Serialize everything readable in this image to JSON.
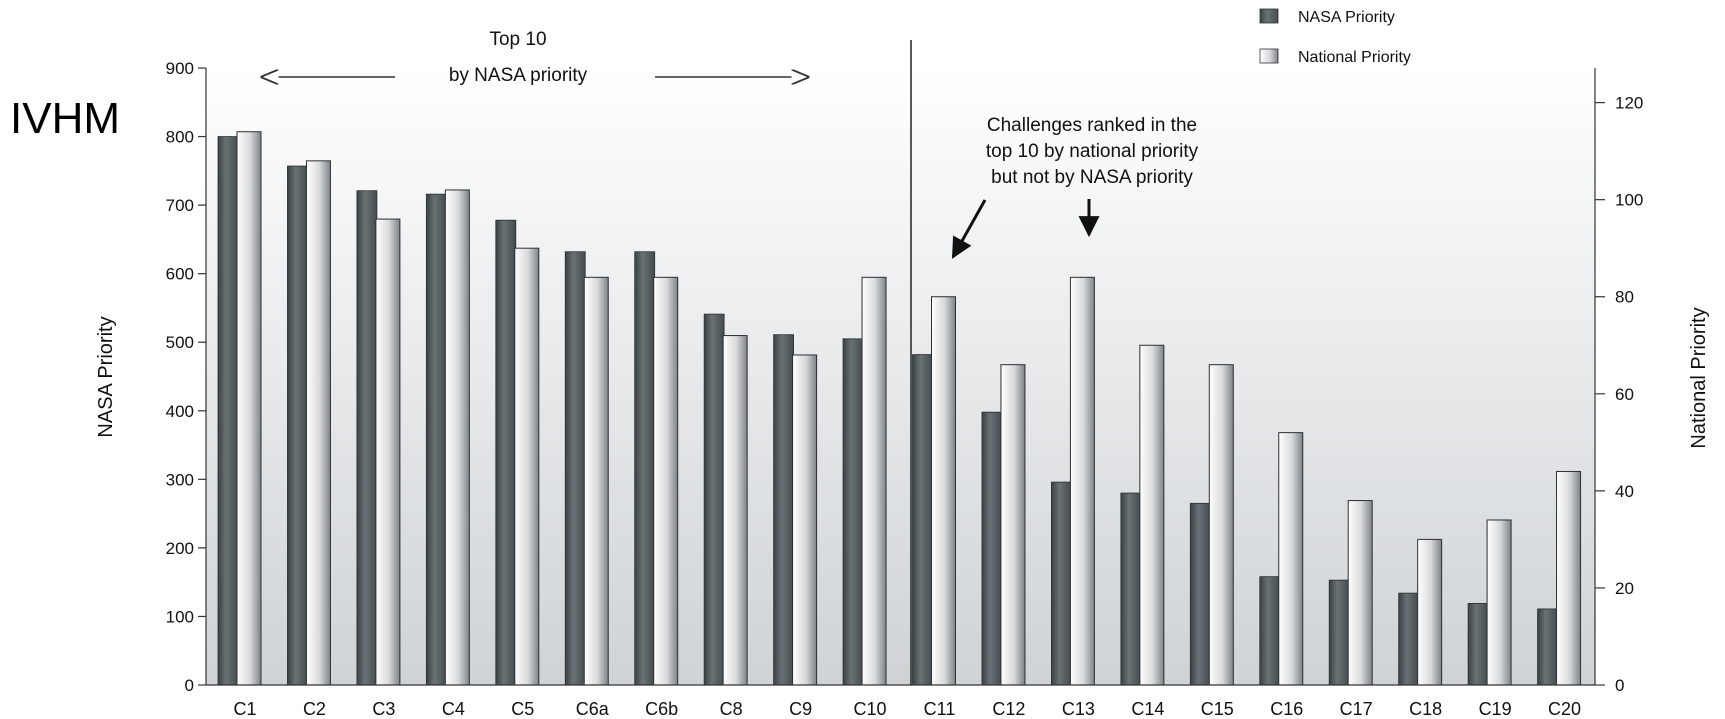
{
  "side_label": "IVHM",
  "colors": {
    "nasa_bar": "#4d5559",
    "national_bar": "#e8e8e8",
    "background_top": "#ffffff",
    "background_bottom": "#cfd3d6"
  },
  "annotations": {
    "top10_line1": "Top 10",
    "top10_line2": "by NASA priority",
    "challenges_line1": "Challenges ranked in the",
    "challenges_line2": "top 10 by national priority",
    "challenges_line3": "but not by NASA priority"
  },
  "chart_data": {
    "type": "bar",
    "categories": [
      "C1",
      "C2",
      "C3",
      "C4",
      "C5",
      "C6a",
      "C6b",
      "C8",
      "C9",
      "C10",
      "C11",
      "C12",
      "C13",
      "C14",
      "C15",
      "C16",
      "C17",
      "C18",
      "C19",
      "C20"
    ],
    "series": [
      {
        "name": "NASA Priority",
        "axis": "left",
        "values": [
          800,
          757,
          721,
          716,
          678,
          632,
          632,
          541,
          511,
          505,
          482,
          398,
          296,
          280,
          265,
          158,
          153,
          134,
          119,
          111
        ]
      },
      {
        "name": "National Priority",
        "axis": "right",
        "values": [
          114,
          108,
          96,
          102,
          90,
          84,
          84,
          72,
          68,
          84,
          80,
          66,
          84,
          70,
          66,
          52,
          38,
          30,
          34,
          44
        ]
      }
    ],
    "title": "",
    "xlabel": "",
    "ylabel": "NASA Priority",
    "ylabel_right": "National Priority",
    "ylim": [
      0,
      900
    ],
    "ylim_right": [
      0,
      128.6
    ],
    "yticks": [
      "0",
      "100",
      "200",
      "300",
      "400",
      "500",
      "600",
      "700",
      "800",
      "900"
    ],
    "yticks_right": [
      "0",
      "20",
      "40",
      "60",
      "80",
      "100",
      "120"
    ],
    "legend": [
      "NASA Priority",
      "National Priority"
    ],
    "legend_position": "top-right",
    "grid": false
  }
}
